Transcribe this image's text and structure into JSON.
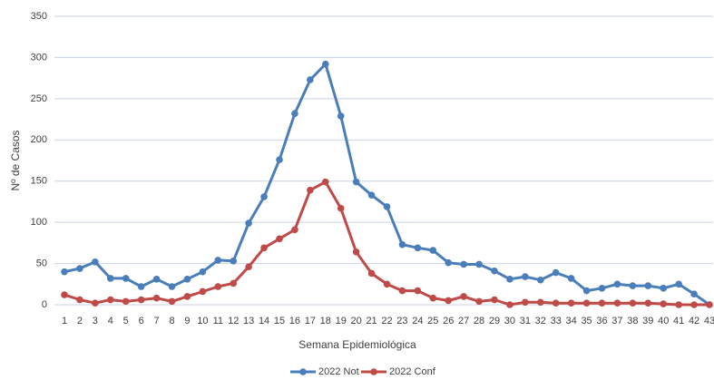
{
  "chart_data": {
    "type": "line",
    "x_label": "Semana Epidemiológica",
    "y_label": "Nº de Casos",
    "categories": [
      "1",
      "2",
      "3",
      "4",
      "5",
      "6",
      "7",
      "8",
      "9",
      "10",
      "11",
      "12",
      "13",
      "14",
      "15",
      "16",
      "17",
      "18",
      "19",
      "20",
      "21",
      "22",
      "23",
      "24",
      "25",
      "26",
      "27",
      "28",
      "29",
      "30",
      "31",
      "32",
      "33",
      "34",
      "35",
      "36",
      "37",
      "38",
      "39",
      "40",
      "41",
      "42",
      "43"
    ],
    "series": [
      {
        "name": "2022 Not",
        "color": "#4a7ebb",
        "values": [
          40,
          44,
          52,
          32,
          32,
          22,
          31,
          22,
          31,
          40,
          54,
          53,
          99,
          131,
          176,
          232,
          273,
          292,
          229,
          149,
          133,
          119,
          73,
          69,
          66,
          51,
          49,
          49,
          41,
          31,
          34,
          30,
          39,
          32,
          17,
          20,
          25,
          23,
          23,
          20,
          25,
          13,
          0
        ]
      },
      {
        "name": "2022 Conf",
        "color": "#be4b48",
        "values": [
          12,
          6,
          2,
          6,
          4,
          6,
          8,
          4,
          10,
          16,
          22,
          26,
          46,
          69,
          80,
          91,
          139,
          149,
          117,
          64,
          38,
          25,
          17,
          17,
          8,
          5,
          10,
          4,
          6,
          0,
          3,
          3,
          2,
          2,
          2,
          2,
          2,
          2,
          2,
          1,
          0,
          0,
          0
        ]
      }
    ],
    "ylim": [
      0,
      350
    ],
    "yticks": [
      0,
      50,
      100,
      150,
      200,
      250,
      300,
      350
    ],
    "grid": true,
    "legend": "bottom"
  }
}
